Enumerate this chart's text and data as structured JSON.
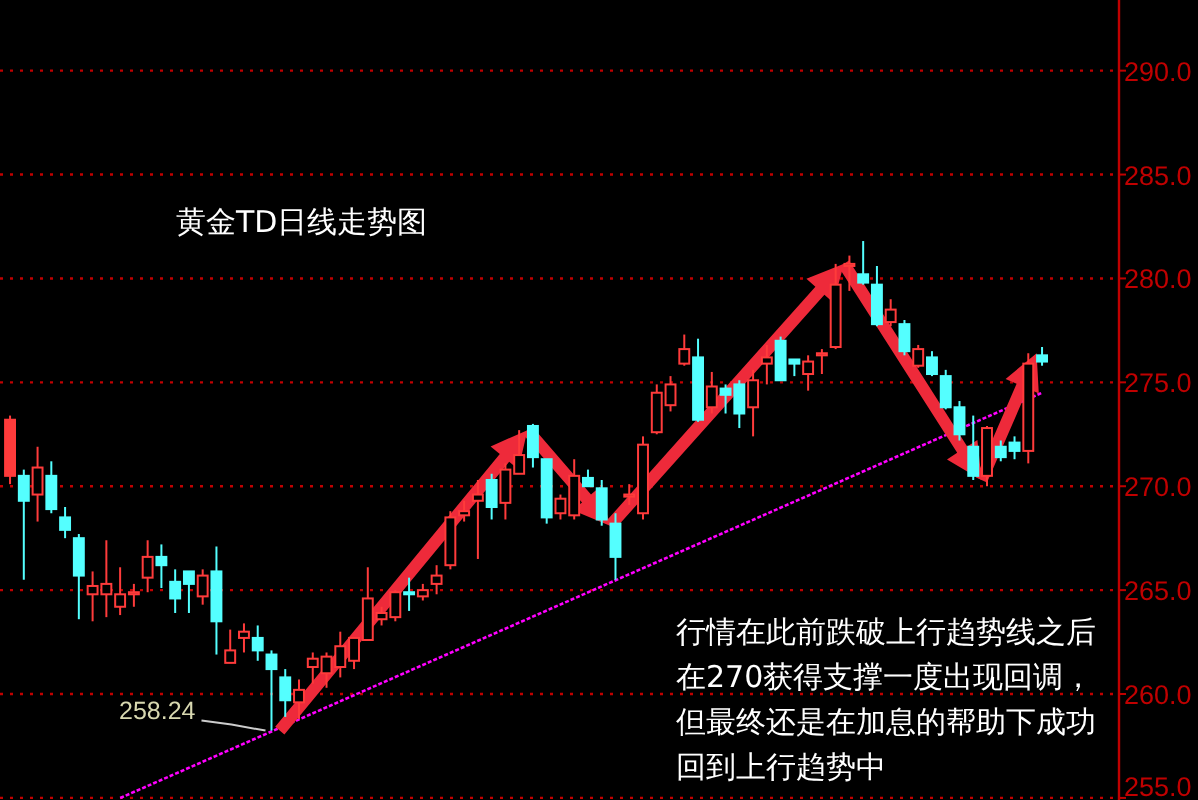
{
  "chart_data": {
    "type": "candlestick",
    "title": "黄金TD日线走势图",
    "annotations": [
      "行情在此前跌破上行趋势线之后在270获得支撑一度出现回调，但最终还是在加息的帮助下成功回到上行趋势中",
      "258.24"
    ],
    "categories": [
      null,
      null,
      null,
      null,
      null,
      null,
      null,
      null,
      null,
      null,
      null,
      null,
      null,
      null,
      null,
      null,
      null,
      null,
      null,
      null,
      null,
      null,
      null,
      null,
      null,
      null,
      null,
      null,
      null,
      null,
      null,
      null,
      null,
      null,
      null,
      null,
      null,
      null,
      null,
      null,
      null,
      null,
      null,
      null,
      null,
      null,
      null,
      null,
      null,
      null,
      null,
      null,
      null,
      null,
      null,
      null,
      null,
      null,
      null,
      null,
      null,
      null,
      null,
      null,
      null,
      null,
      null,
      null,
      null,
      null,
      null,
      null,
      null,
      null,
      null,
      null
    ],
    "ohlc": [
      [
        273.2,
        273.4,
        270.1,
        270.5
      ],
      [
        270.5,
        270.8,
        265.5,
        269.3
      ],
      [
        269.6,
        271.9,
        268.3,
        270.9
      ],
      [
        270.5,
        271.2,
        268.7,
        268.9
      ],
      [
        268.5,
        269.0,
        267.5,
        267.9
      ],
      [
        267.5,
        267.7,
        263.6,
        265.7
      ],
      [
        264.8,
        265.9,
        263.5,
        265.2
      ],
      [
        264.8,
        267.4,
        263.7,
        265.3
      ],
      [
        264.2,
        266.1,
        263.8,
        264.8
      ],
      [
        264.8,
        265.3,
        264.2,
        264.9
      ],
      [
        265.6,
        267.4,
        264.9,
        266.6
      ],
      [
        266.6,
        267.2,
        265.1,
        266.2
      ],
      [
        265.4,
        266.0,
        263.9,
        264.6
      ],
      [
        265.9,
        265.9,
        263.9,
        265.3
      ],
      [
        264.7,
        266.0,
        264.3,
        265.7
      ],
      [
        265.9,
        267.1,
        261.9,
        263.5
      ],
      [
        261.5,
        263.1,
        261.5,
        262.1
      ],
      [
        262.7,
        263.4,
        262.0,
        263.0
      ],
      [
        262.7,
        263.3,
        261.6,
        262.1
      ],
      [
        261.9,
        262.1,
        258.24,
        261.2
      ],
      [
        260.8,
        261.2,
        258.9,
        259.7
      ],
      [
        259.6,
        260.7,
        258.8,
        260.2
      ],
      [
        261.3,
        262.0,
        260.5,
        261.7
      ],
      [
        261.0,
        262.0,
        260.3,
        261.8
      ],
      [
        261.3,
        263.0,
        260.8,
        262.3
      ],
      [
        261.6,
        262.7,
        261.2,
        262.7
      ],
      [
        262.6,
        266.1,
        262.6,
        264.6
      ],
      [
        263.6,
        264.2,
        263.3,
        263.9
      ],
      [
        263.7,
        265.0,
        263.5,
        264.9
      ],
      [
        264.9,
        265.6,
        264.0,
        264.8
      ],
      [
        264.7,
        265.3,
        264.5,
        265.0
      ],
      [
        265.3,
        266.2,
        264.8,
        265.7
      ],
      [
        266.2,
        268.8,
        266.0,
        268.5
      ],
      [
        268.6,
        269.3,
        268.3,
        268.8
      ],
      [
        269.3,
        270.3,
        266.5,
        269.6
      ],
      [
        270.3,
        270.6,
        268.4,
        269.0
      ],
      [
        269.2,
        271.1,
        268.4,
        270.8
      ],
      [
        270.6,
        272.7,
        270.6,
        271.5
      ],
      [
        272.9,
        273.0,
        270.9,
        271.4
      ],
      [
        271.3,
        271.3,
        268.2,
        268.5
      ],
      [
        268.7,
        269.6,
        268.4,
        269.4
      ],
      [
        268.6,
        271.3,
        268.4,
        270.5
      ],
      [
        270.4,
        270.8,
        270.0,
        270.0
      ],
      [
        269.9,
        270.3,
        268.1,
        268.4
      ],
      [
        268.2,
        268.7,
        265.5,
        266.6
      ],
      [
        269.5,
        270.1,
        269.1,
        269.6
      ],
      [
        268.7,
        272.4,
        268.4,
        272.0
      ],
      [
        272.6,
        274.9,
        272.5,
        274.5
      ],
      [
        273.9,
        275.3,
        273.6,
        274.9
      ],
      [
        275.9,
        277.3,
        275.8,
        276.6
      ],
      [
        276.2,
        277.1,
        273.1,
        273.2
      ],
      [
        273.8,
        275.5,
        273.5,
        274.8
      ],
      [
        274.7,
        274.9,
        273.5,
        274.4
      ],
      [
        274.9,
        275.1,
        272.8,
        273.5
      ],
      [
        273.8,
        275.6,
        272.4,
        275.1
      ],
      [
        275.9,
        276.8,
        274.9,
        276.2
      ],
      [
        277.0,
        277.2,
        275.1,
        275.1
      ],
      [
        276.1,
        276.1,
        275.3,
        275.9
      ],
      [
        275.4,
        276.3,
        274.6,
        276.0
      ],
      [
        276.3,
        276.6,
        275.4,
        276.4
      ],
      [
        276.7,
        280.7,
        276.6,
        279.7
      ],
      [
        280.6,
        281.1,
        279.4,
        280.7
      ],
      [
        280.2,
        281.8,
        279.7,
        279.8
      ],
      [
        279.7,
        280.6,
        277.7,
        277.8
      ],
      [
        277.9,
        279.0,
        277.7,
        278.5
      ],
      [
        277.8,
        278.0,
        276.3,
        276.5
      ],
      [
        275.8,
        276.8,
        275.7,
        276.6
      ],
      [
        276.2,
        276.5,
        275.3,
        275.4
      ],
      [
        275.3,
        275.6,
        273.7,
        273.8
      ],
      [
        273.8,
        274.1,
        272.2,
        272.5
      ],
      [
        271.9,
        273.4,
        270.3,
        270.5
      ],
      [
        270.5,
        272.9,
        270.0,
        272.8
      ],
      [
        271.9,
        272.2,
        271.2,
        271.4
      ],
      [
        272.1,
        272.4,
        271.3,
        271.7
      ],
      [
        271.7,
        276.4,
        271.1,
        275.9
      ],
      [
        276.3,
        276.7,
        275.8,
        276.0
      ]
    ],
    "colors": [
      "#ff3b3b",
      "#54ffff",
      "#ff3b3b",
      "#54ffff",
      "#54ffff",
      "#54ffff",
      "#ff3b3b",
      "#ff3b3b",
      "#ff3b3b",
      "#ff3b3b",
      "#ff3b3b",
      "#54ffff",
      "#54ffff",
      "#54ffff",
      "#ff3b3b",
      "#54ffff",
      "#ff3b3b",
      "#ff3b3b",
      "#54ffff",
      "#54ffff",
      "#54ffff",
      "#ff3b3b",
      "#ff3b3b",
      "#ff3b3b",
      "#ff3b3b",
      "#ff3b3b",
      "#ff3b3b",
      "#ff3b3b",
      "#ff3b3b",
      "#54ffff",
      "#ff3b3b",
      "#ff3b3b",
      "#ff3b3b",
      "#ff3b3b",
      "#ff3b3b",
      "#54ffff",
      "#ff3b3b",
      "#ff3b3b",
      "#54ffff",
      "#54ffff",
      "#ff3b3b",
      "#ff3b3b",
      "#54ffff",
      "#54ffff",
      "#54ffff",
      "#ff3b3b",
      "#ff3b3b",
      "#ff3b3b",
      "#ff3b3b",
      "#ff3b3b",
      "#54ffff",
      "#ff3b3b",
      "#54ffff",
      "#54ffff",
      "#ff3b3b",
      "#ff3b3b",
      "#54ffff",
      "#54ffff",
      "#ff3b3b",
      "#ff3b3b",
      "#ff3b3b",
      "#ff3b3b",
      "#54ffff",
      "#54ffff",
      "#ff3b3b",
      "#54ffff",
      "#ff3b3b",
      "#54ffff",
      "#54ffff",
      "#54ffff",
      "#54ffff",
      "#ff3b3b",
      "#54ffff",
      "#54ffff",
      "#ff3b3b",
      "#54ffff"
    ],
    "series": [
      {
        "type": "line",
        "color": "#ff00ff",
        "line_style": "dashed",
        "values": [
          null,
          null,
          null,
          null,
          null,
          null,
          null,
          null,
          255.0,
          null,
          null,
          null,
          null,
          null,
          null,
          null,
          null,
          null,
          null,
          null,
          null,
          null,
          null,
          null,
          null,
          null,
          null,
          null,
          null,
          null,
          null,
          null,
          null,
          null,
          null,
          null,
          null,
          null,
          null,
          null,
          null,
          null,
          null,
          null,
          null,
          null,
          null,
          null,
          null,
          null,
          null,
          null,
          null,
          null,
          null,
          null,
          null,
          null,
          null,
          null,
          null,
          null,
          null,
          null,
          null,
          null,
          null,
          null,
          null,
          null,
          null,
          null,
          null,
          null,
          null,
          274.5
        ]
      }
    ],
    "ylim": [
      254.9,
      293.4
    ],
    "yticks": [
      {
        "value": 255,
        "label": "255.0"
      },
      {
        "value": 260,
        "label": "260.0"
      },
      {
        "value": 265,
        "label": "265.0"
      },
      {
        "value": 270,
        "label": "270.0"
      },
      {
        "value": 275,
        "label": "275.0"
      },
      {
        "value": 280,
        "label": "280.0"
      },
      {
        "value": 285,
        "label": "285.0"
      },
      {
        "value": 290,
        "label": "290.0"
      }
    ],
    "grid": "y",
    "tick_labels": "y"
  }
}
